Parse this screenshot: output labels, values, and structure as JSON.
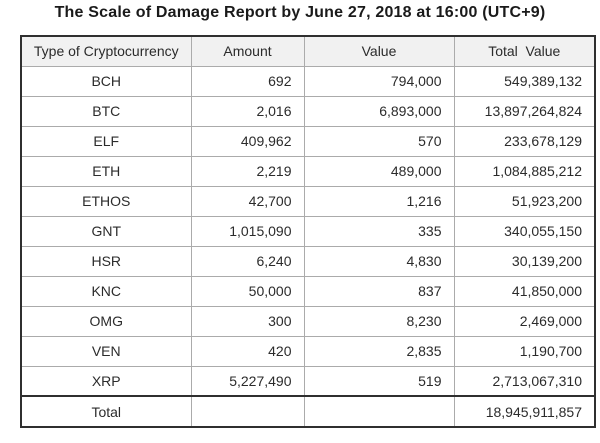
{
  "title": "The Scale of Damage Report by June 27, 2018 at 16:00 (UTC+9)",
  "chart_data": {
    "type": "table",
    "title": "The Scale of Damage Report by June 27, 2018 at 16:00 (UTC+9)",
    "columns": [
      "Type of Cryptocurrency",
      "Amount",
      "Value",
      "Total  Value"
    ],
    "rows": [
      [
        "BCH",
        "692",
        "794,000",
        "549,389,132"
      ],
      [
        "BTC",
        "2,016",
        "6,893,000",
        "13,897,264,824"
      ],
      [
        "ELF",
        "409,962",
        "570",
        "233,678,129"
      ],
      [
        "ETH",
        "2,219",
        "489,000",
        "1,084,885,212"
      ],
      [
        "ETHOS",
        "42,700",
        "1,216",
        "51,923,200"
      ],
      [
        "GNT",
        "1,015,090",
        "335",
        "340,055,150"
      ],
      [
        "HSR",
        "6,240",
        "4,830",
        "30,139,200"
      ],
      [
        "KNC",
        "50,000",
        "837",
        "41,850,000"
      ],
      [
        "OMG",
        "300",
        "8,230",
        "2,469,000"
      ],
      [
        "VEN",
        "420",
        "2,835",
        "1,190,700"
      ],
      [
        "XRP",
        "5,227,490",
        "519",
        "2,713,067,310"
      ]
    ],
    "total_row": {
      "label": "Total",
      "amount": "",
      "value": "",
      "total_value": "18,945,911,857"
    }
  },
  "colors": {
    "header_background": "#f1f1f1",
    "inner_border": "#ababab",
    "outer_border": "#2f2f2f",
    "text": "#2b2b2b"
  }
}
